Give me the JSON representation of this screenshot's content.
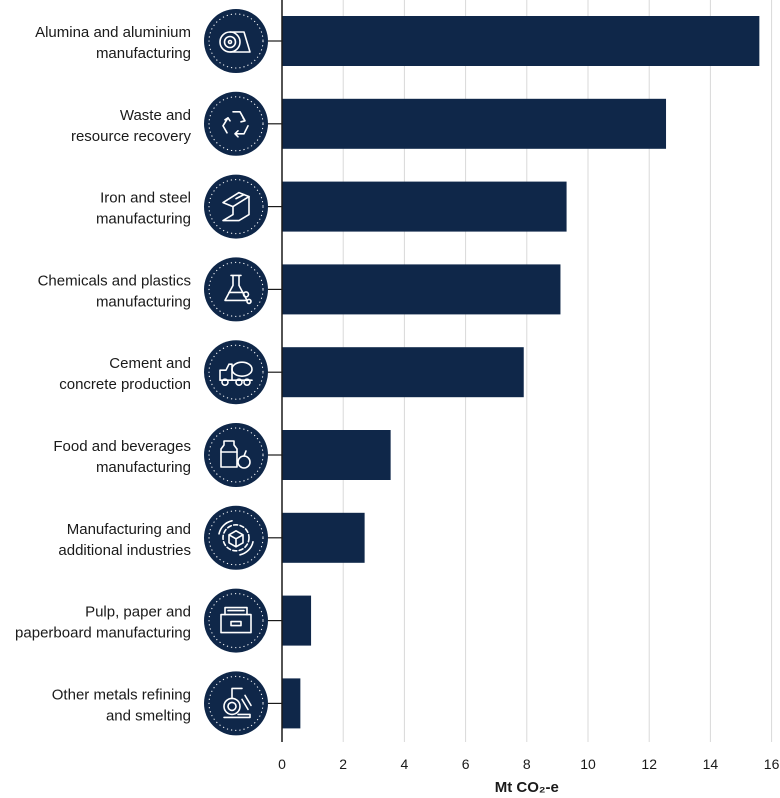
{
  "chart_data": {
    "type": "bar",
    "orientation": "horizontal",
    "categories": [
      [
        "Alumina and aluminium",
        "manufacturing"
      ],
      [
        "Waste and",
        "resource recovery"
      ],
      [
        "Iron and steel",
        "manufacturing"
      ],
      [
        "Chemicals and plastics",
        "manufacturing"
      ],
      [
        "Cement and",
        "concrete production"
      ],
      [
        "Food and beverages",
        "manufacturing"
      ],
      [
        "Manufacturing and",
        "additional industries"
      ],
      [
        "Pulp, paper and",
        "paperboard manufacturing"
      ],
      [
        "Other metals refining",
        "and smelting"
      ]
    ],
    "icons": [
      "aluminium-roll-icon",
      "recycle-icon",
      "steel-beam-icon",
      "flask-icon",
      "concrete-mixer-truck-icon",
      "milk-and-apple-icon",
      "gear-cube-icon",
      "paper-box-icon",
      "ladle-smelting-icon"
    ],
    "values": [
      15.6,
      12.55,
      9.3,
      9.1,
      7.9,
      3.55,
      2.7,
      0.95,
      0.6
    ],
    "xlabel": "Mt CO₂-e",
    "xlim": [
      0,
      16
    ],
    "xticks": [
      0,
      2,
      4,
      6,
      8,
      10,
      12,
      14,
      16
    ],
    "grid": true,
    "colors": {
      "bar": "#0f2749",
      "icon_bg": "#0f2749",
      "grid": "#d9d9d9",
      "axis": "#1a1a1a"
    }
  }
}
